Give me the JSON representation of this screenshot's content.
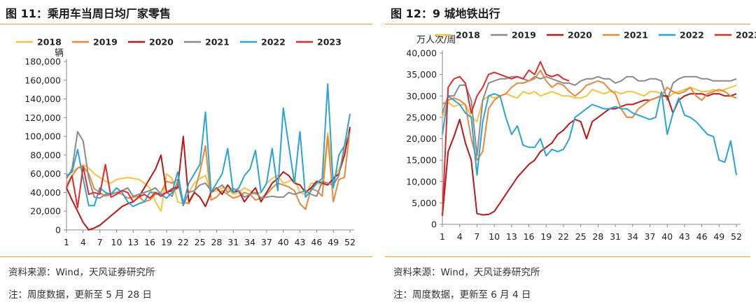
{
  "left": {
    "title": "图 11：乘用车当周日均厂家零售",
    "source": "资料来源：Wind，天风证券研究所",
    "note": "注：周度数据，更新至 5 月 28 日"
  },
  "right": {
    "title": "图 12：9 城地铁出行",
    "source": "资料来源：Wind，天风证券研究所",
    "note": "注：周度数据，更新至 6 月 4 日"
  },
  "chart_data": [
    {
      "type": "line",
      "title": "",
      "ylabel": "辆",
      "xlabel": "",
      "ylim": [
        0,
        180000
      ],
      "yticks": [
        0,
        20000,
        40000,
        60000,
        80000,
        100000,
        120000,
        140000,
        160000,
        180000
      ],
      "xlim": [
        1,
        52
      ],
      "xticks": [
        1,
        4,
        7,
        10,
        13,
        16,
        19,
        22,
        25,
        28,
        31,
        34,
        37,
        40,
        43,
        46,
        49,
        52
      ],
      "grid": false,
      "legend_position": "top",
      "series": [
        {
          "name": "2018",
          "color": "#f5c342",
          "values": [
            55000,
            62000,
            66000,
            70000,
            66000,
            60000,
            56000,
            52000,
            50000,
            54000,
            55000,
            56000,
            55000,
            54000,
            50000,
            45000,
            30000,
            20000,
            60000,
            55000,
            30000,
            28000,
            40000,
            50000,
            55000,
            58000,
            40000,
            42000,
            45000,
            44000,
            38000,
            40000,
            45000,
            42000,
            38000,
            40000,
            50000,
            55000,
            58000,
            50000,
            52000,
            55000,
            40000,
            38000,
            50000,
            50000,
            48000,
            104000,
            55000,
            65000,
            80000,
            110000
          ]
        },
        {
          "name": "2019",
          "color": "#e8883a",
          "values": [
            48000,
            58000,
            66000,
            68000,
            60000,
            44000,
            40000,
            36000,
            38000,
            40000,
            38000,
            34000,
            35000,
            36000,
            30000,
            32000,
            38000,
            40000,
            52000,
            50000,
            54000,
            30000,
            28000,
            40000,
            62000,
            90000,
            32000,
            35000,
            42000,
            38000,
            34000,
            36000,
            40000,
            38000,
            32000,
            34000,
            38000,
            45000,
            50000,
            48000,
            46000,
            42000,
            28000,
            22000,
            44000,
            42000,
            36000,
            100000,
            30000,
            54000,
            56000,
            108000
          ]
        },
        {
          "name": "2020",
          "color": "#b81818",
          "values": [
            45000,
            32000,
            20000,
            8000,
            0,
            2000,
            5000,
            10000,
            15000,
            20000,
            25000,
            28000,
            30000,
            35000,
            45000,
            55000,
            65000,
            80000,
            40000,
            42000,
            45000,
            100000,
            30000,
            40000,
            35000,
            25000,
            40000,
            45000,
            38000,
            48000,
            40000,
            42000,
            30000,
            38000,
            45000,
            30000,
            40000,
            50000,
            55000,
            62000,
            58000,
            50000,
            48000,
            40000,
            45000,
            52000,
            50000,
            48000,
            55000,
            60000,
            80000,
            110000
          ]
        },
        {
          "name": "2021",
          "color": "#8a8a8a",
          "values": [
            55000,
            65000,
            105000,
            95000,
            55000,
            35000,
            34000,
            38000,
            38000,
            40000,
            42000,
            45000,
            36000,
            38000,
            40000,
            42000,
            45000,
            38000,
            40000,
            36000,
            52000,
            26000,
            40000,
            42000,
            48000,
            50000,
            42000,
            44000,
            48000,
            40000,
            44000,
            42000,
            35000,
            38000,
            40000,
            34000,
            35000,
            36000,
            35000,
            35000,
            40000,
            38000,
            40000,
            42000,
            38000,
            36000,
            52000,
            50000,
            48000,
            58000,
            90000,
            105000
          ]
        },
        {
          "name": "2022",
          "color": "#2aa3d8",
          "values": [
            58000,
            62000,
            86000,
            55000,
            26000,
            26000,
            45000,
            40000,
            38000,
            45000,
            40000,
            30000,
            25000,
            28000,
            30000,
            40000,
            40000,
            38000,
            34000,
            40000,
            62000,
            28000,
            50000,
            60000,
            70000,
            126000,
            40000,
            50000,
            60000,
            87000,
            40000,
            45000,
            58000,
            65000,
            85000,
            40000,
            50000,
            87000,
            42000,
            130000,
            90000,
            50000,
            105000,
            35000,
            42000,
            50000,
            55000,
            156000,
            45000,
            80000,
            90000,
            124000
          ]
        },
        {
          "name": "2023",
          "color": "#e02a2a",
          "values": [
            45000,
            58000,
            24000,
            68000,
            38000,
            40000,
            38000,
            70000,
            35000,
            38000,
            42000,
            40000,
            30000,
            35000,
            38000,
            34000,
            40000,
            36000,
            40000,
            44000,
            46000
          ]
        }
      ]
    },
    {
      "type": "line",
      "title": "",
      "ylabel": "万人次/周",
      "xlabel": "",
      "ylim": [
        0,
        40000
      ],
      "yticks": [
        0,
        5000,
        10000,
        15000,
        20000,
        25000,
        30000,
        35000,
        40000
      ],
      "xlim": [
        1,
        52
      ],
      "xticks": [
        1,
        4,
        7,
        10,
        13,
        16,
        19,
        22,
        25,
        28,
        31,
        34,
        37,
        40,
        43,
        46,
        49,
        52
      ],
      "grid": false,
      "legend_position": "top",
      "series": [
        {
          "name": "2018",
          "color": "#f5c342",
          "values": [
            25000,
            28500,
            27500,
            28000,
            28000,
            25000,
            24000,
            29000,
            30000,
            29500,
            30000,
            30500,
            30000,
            29500,
            31000,
            30500,
            31000,
            30000,
            30500,
            31000,
            30500,
            30000,
            30000,
            29500,
            29500,
            30000,
            31500,
            31000,
            30500,
            31000,
            31000,
            30500,
            31000,
            31000,
            30500,
            30000,
            31000,
            31000,
            30500,
            29500,
            30500,
            31000,
            31500,
            32000,
            31500,
            31000,
            31000,
            31500,
            31000,
            31500,
            32000,
            32500
          ]
        },
        {
          "name": "2019",
          "color": "#8a8a8a",
          "values": [
            26000,
            30000,
            30000,
            32500,
            32500,
            29000,
            16000,
            29000,
            33000,
            33500,
            34000,
            34000,
            34500,
            34500,
            34000,
            33500,
            34500,
            34000,
            34500,
            34000,
            33500,
            33000,
            33000,
            32500,
            33500,
            34000,
            34000,
            34500,
            34000,
            34000,
            33000,
            33500,
            34500,
            34500,
            33500,
            33500,
            34000,
            34000,
            33500,
            29000,
            33000,
            34000,
            34500,
            34500,
            34500,
            34000,
            34000,
            33500,
            33500,
            33500,
            33500,
            34000
          ]
        },
        {
          "name": "2020",
          "color": "#b81818",
          "values": [
            2000,
            17000,
            20500,
            24500,
            19000,
            15000,
            2500,
            2200,
            2300,
            3000,
            5000,
            7000,
            9000,
            11000,
            12500,
            14000,
            15000,
            17000,
            18000,
            19000,
            21000,
            22000,
            23500,
            24500,
            24000,
            20000,
            24000,
            25000,
            26000,
            27000,
            27000,
            27500,
            28000,
            28000,
            28500,
            29000,
            29000,
            29500,
            30000,
            30000,
            26000,
            29000,
            30000,
            30500,
            30500,
            30500,
            30000,
            30500,
            30500,
            30000,
            30000,
            30500
          ]
        },
        {
          "name": "2021",
          "color": "#e8883a",
          "values": [
            28000,
            29000,
            29500,
            29000,
            28000,
            20000,
            15000,
            17000,
            27000,
            29000,
            30000,
            30500,
            32000,
            33000,
            33000,
            33500,
            34000,
            36000,
            33500,
            32000,
            33000,
            32500,
            31000,
            30000,
            31000,
            32500,
            33000,
            33500,
            33000,
            31500,
            30500,
            27000,
            25000,
            25000,
            27000,
            28000,
            29000,
            29500,
            30000,
            32000,
            31000,
            30500,
            31000,
            32000,
            30000,
            29000,
            30500,
            31000,
            31500,
            31000,
            30000,
            29500
          ]
        },
        {
          "name": "2022",
          "color": "#2aa3d8",
          "values": [
            21000,
            30000,
            29000,
            28000,
            26000,
            25000,
            11500,
            24000,
            30000,
            30500,
            30000,
            25000,
            21000,
            23000,
            18500,
            18000,
            18000,
            20000,
            16000,
            17500,
            17000,
            17500,
            20000,
            25000,
            26000,
            27000,
            28000,
            27500,
            27000,
            27000,
            27500,
            27000,
            27000,
            26000,
            25500,
            25000,
            24500,
            25000,
            31000,
            21000,
            26000,
            29500,
            25500,
            25000,
            24000,
            22500,
            21000,
            20500,
            15000,
            14500,
            19500,
            11500
          ]
        },
        {
          "name": "2023",
          "color": "#e02a2a",
          "values": [
            2000,
            32000,
            34000,
            34500,
            33000,
            26000,
            30000,
            32000,
            35000,
            35500,
            35000,
            34500,
            34000,
            34500,
            34000,
            36000,
            35000,
            38000,
            35000,
            34500,
            35000,
            34000,
            33500
          ]
        }
      ]
    }
  ]
}
